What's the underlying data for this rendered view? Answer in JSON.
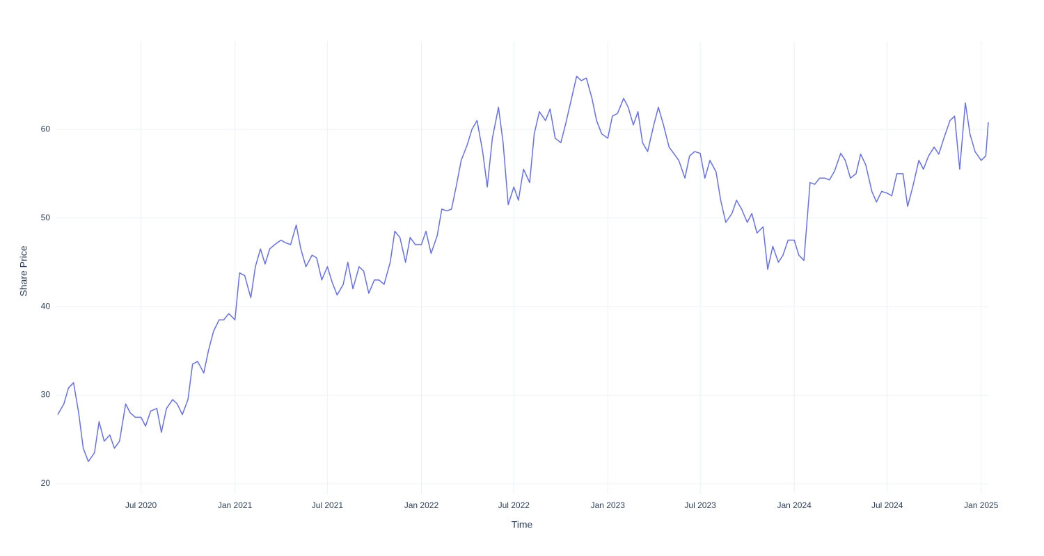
{
  "chart_data": {
    "type": "line",
    "xlabel": "Time",
    "ylabel": "Share Price",
    "x": [
      "2020-01-20",
      "2020-02-01",
      "2020-02-10",
      "2020-02-20",
      "2020-03-01",
      "2020-03-10",
      "2020-03-20",
      "2020-04-01",
      "2020-04-10",
      "2020-04-20",
      "2020-05-01",
      "2020-05-10",
      "2020-05-20",
      "2020-06-01",
      "2020-06-10",
      "2020-06-20",
      "2020-07-01",
      "2020-07-10",
      "2020-07-20",
      "2020-08-01",
      "2020-08-10",
      "2020-08-20",
      "2020-09-01",
      "2020-09-10",
      "2020-09-20",
      "2020-10-01",
      "2020-10-10",
      "2020-10-20",
      "2020-11-01",
      "2020-11-10",
      "2020-11-20",
      "2020-12-01",
      "2020-12-10",
      "2020-12-20",
      "2021-01-01",
      "2021-01-10",
      "2021-01-20",
      "2021-02-01",
      "2021-02-10",
      "2021-02-20",
      "2021-03-01",
      "2021-03-10",
      "2021-03-20",
      "2021-04-01",
      "2021-04-10",
      "2021-04-20",
      "2021-05-01",
      "2021-05-10",
      "2021-05-20",
      "2021-06-01",
      "2021-06-10",
      "2021-06-20",
      "2021-07-01",
      "2021-07-10",
      "2021-07-20",
      "2021-08-01",
      "2021-08-10",
      "2021-08-20",
      "2021-09-01",
      "2021-09-10",
      "2021-09-20",
      "2021-10-01",
      "2021-10-10",
      "2021-10-20",
      "2021-11-01",
      "2021-11-10",
      "2021-11-20",
      "2021-12-01",
      "2021-12-10",
      "2021-12-20",
      "2022-01-01",
      "2022-01-10",
      "2022-01-20",
      "2022-02-01",
      "2022-02-10",
      "2022-02-20",
      "2022-03-01",
      "2022-03-10",
      "2022-03-20",
      "2022-04-01",
      "2022-04-10",
      "2022-04-20",
      "2022-05-01",
      "2022-05-10",
      "2022-05-20",
      "2022-06-01",
      "2022-06-10",
      "2022-06-20",
      "2022-07-01",
      "2022-07-10",
      "2022-07-20",
      "2022-08-01",
      "2022-08-10",
      "2022-08-20",
      "2022-09-01",
      "2022-09-10",
      "2022-09-20",
      "2022-10-01",
      "2022-10-10",
      "2022-10-20",
      "2022-11-01",
      "2022-11-10",
      "2022-11-20",
      "2022-12-01",
      "2022-12-10",
      "2022-12-20",
      "2023-01-01",
      "2023-01-10",
      "2023-01-20",
      "2023-02-01",
      "2023-02-10",
      "2023-02-20",
      "2023-03-01",
      "2023-03-10",
      "2023-03-20",
      "2023-04-01",
      "2023-04-10",
      "2023-04-20",
      "2023-05-01",
      "2023-05-10",
      "2023-05-20",
      "2023-06-01",
      "2023-06-10",
      "2023-06-20",
      "2023-07-01",
      "2023-07-10",
      "2023-07-20",
      "2023-08-01",
      "2023-08-10",
      "2023-08-20",
      "2023-09-01",
      "2023-09-10",
      "2023-09-20",
      "2023-10-01",
      "2023-10-10",
      "2023-10-20",
      "2023-11-01",
      "2023-11-10",
      "2023-11-20",
      "2023-12-01",
      "2023-12-10",
      "2023-12-20",
      "2024-01-01",
      "2024-01-10",
      "2024-01-20",
      "2024-02-01",
      "2024-02-10",
      "2024-02-20",
      "2024-03-01",
      "2024-03-10",
      "2024-03-20",
      "2024-04-01",
      "2024-04-10",
      "2024-04-20",
      "2024-05-01",
      "2024-05-10",
      "2024-05-20",
      "2024-06-01",
      "2024-06-10",
      "2024-06-20",
      "2024-07-01",
      "2024-07-10",
      "2024-07-20",
      "2024-08-01",
      "2024-08-10",
      "2024-08-20",
      "2024-09-01",
      "2024-09-10",
      "2024-09-20",
      "2024-10-01",
      "2024-10-10",
      "2024-10-20",
      "2024-11-01",
      "2024-11-10",
      "2024-11-20",
      "2024-12-01",
      "2024-12-10",
      "2024-12-20",
      "2025-01-01",
      "2025-01-10",
      "2025-01-15"
    ],
    "series": [
      {
        "color": "#636efa",
        "values": [
          27.8,
          29,
          30.8,
          31.4,
          28,
          24,
          22.5,
          23.5,
          27,
          24.8,
          25.5,
          24,
          24.8,
          29,
          28,
          27.5,
          27.5,
          26.5,
          28.2,
          28.5,
          25.8,
          28.5,
          29.5,
          29,
          27.8,
          29.5,
          33.5,
          33.8,
          32.5,
          35,
          37.2,
          38.5,
          38.5,
          39.2,
          38.5,
          43.8,
          43.5,
          41,
          44.5,
          46.5,
          44.8,
          46.5,
          47,
          47.5,
          47.2,
          47,
          49.2,
          46.5,
          44.5,
          45.8,
          45.5,
          43,
          44.5,
          42.8,
          41.3,
          42.5,
          45,
          42,
          44.5,
          44,
          41.5,
          43,
          43,
          42.5,
          45,
          48.5,
          47.8,
          45,
          47.8,
          47,
          47,
          48.5,
          46,
          48,
          51,
          50.8,
          51,
          53.5,
          56.5,
          58.3,
          60,
          61,
          57.5,
          53.5,
          59,
          62.5,
          58.5,
          51.5,
          53.5,
          52,
          55.5,
          54,
          59.5,
          62,
          61,
          62.3,
          59,
          58.5,
          60.5,
          63,
          66,
          65.5,
          65.8,
          63.5,
          61,
          59.5,
          59,
          61.5,
          61.8,
          63.5,
          62.5,
          60.5,
          62,
          58.5,
          57.5,
          60.5,
          62.5,
          60.5,
          58,
          57.3,
          56.5,
          54.5,
          57,
          57.5,
          57.3,
          54.5,
          56.5,
          55.2,
          52,
          49.5,
          50.5,
          52,
          51,
          49.5,
          50.5,
          48.3,
          49,
          44.2,
          46.8,
          45,
          45.8,
          47.5,
          47.5,
          45.8,
          45.2,
          54,
          53.8,
          54.5,
          54.5,
          54.3,
          55.3,
          57.3,
          56.5,
          54.5,
          55,
          57.2,
          56,
          53,
          51.8,
          53,
          52.8,
          52.5,
          55,
          55,
          51.3,
          53.5,
          56.5,
          55.5,
          57,
          58,
          57.2,
          59,
          61,
          61.5,
          55.5,
          63,
          59.5,
          57.5,
          56.5,
          57,
          60.8
        ]
      }
    ],
    "xlim": [
      "2020-01-16",
      "2025-01-15"
    ],
    "xticks": [
      {
        "value": "2020-07-01",
        "label": "Jul 2020"
      },
      {
        "value": "2021-01-01",
        "label": "Jan 2021"
      },
      {
        "value": "2021-07-01",
        "label": "Jul 2021"
      },
      {
        "value": "2022-01-01",
        "label": "Jan 2022"
      },
      {
        "value": "2022-07-01",
        "label": "Jul 2022"
      },
      {
        "value": "2023-01-01",
        "label": "Jan 2023"
      },
      {
        "value": "2023-07-01",
        "label": "Jul 2023"
      },
      {
        "value": "2024-01-01",
        "label": "Jan 2024"
      },
      {
        "value": "2024-07-01",
        "label": "Jul 2024"
      },
      {
        "value": "2025-01-01",
        "label": "Jan 2025"
      }
    ],
    "ylim": [
      18.9,
      69.9
    ],
    "yticks": [
      20,
      30,
      40,
      50,
      60
    ],
    "grid": true
  }
}
